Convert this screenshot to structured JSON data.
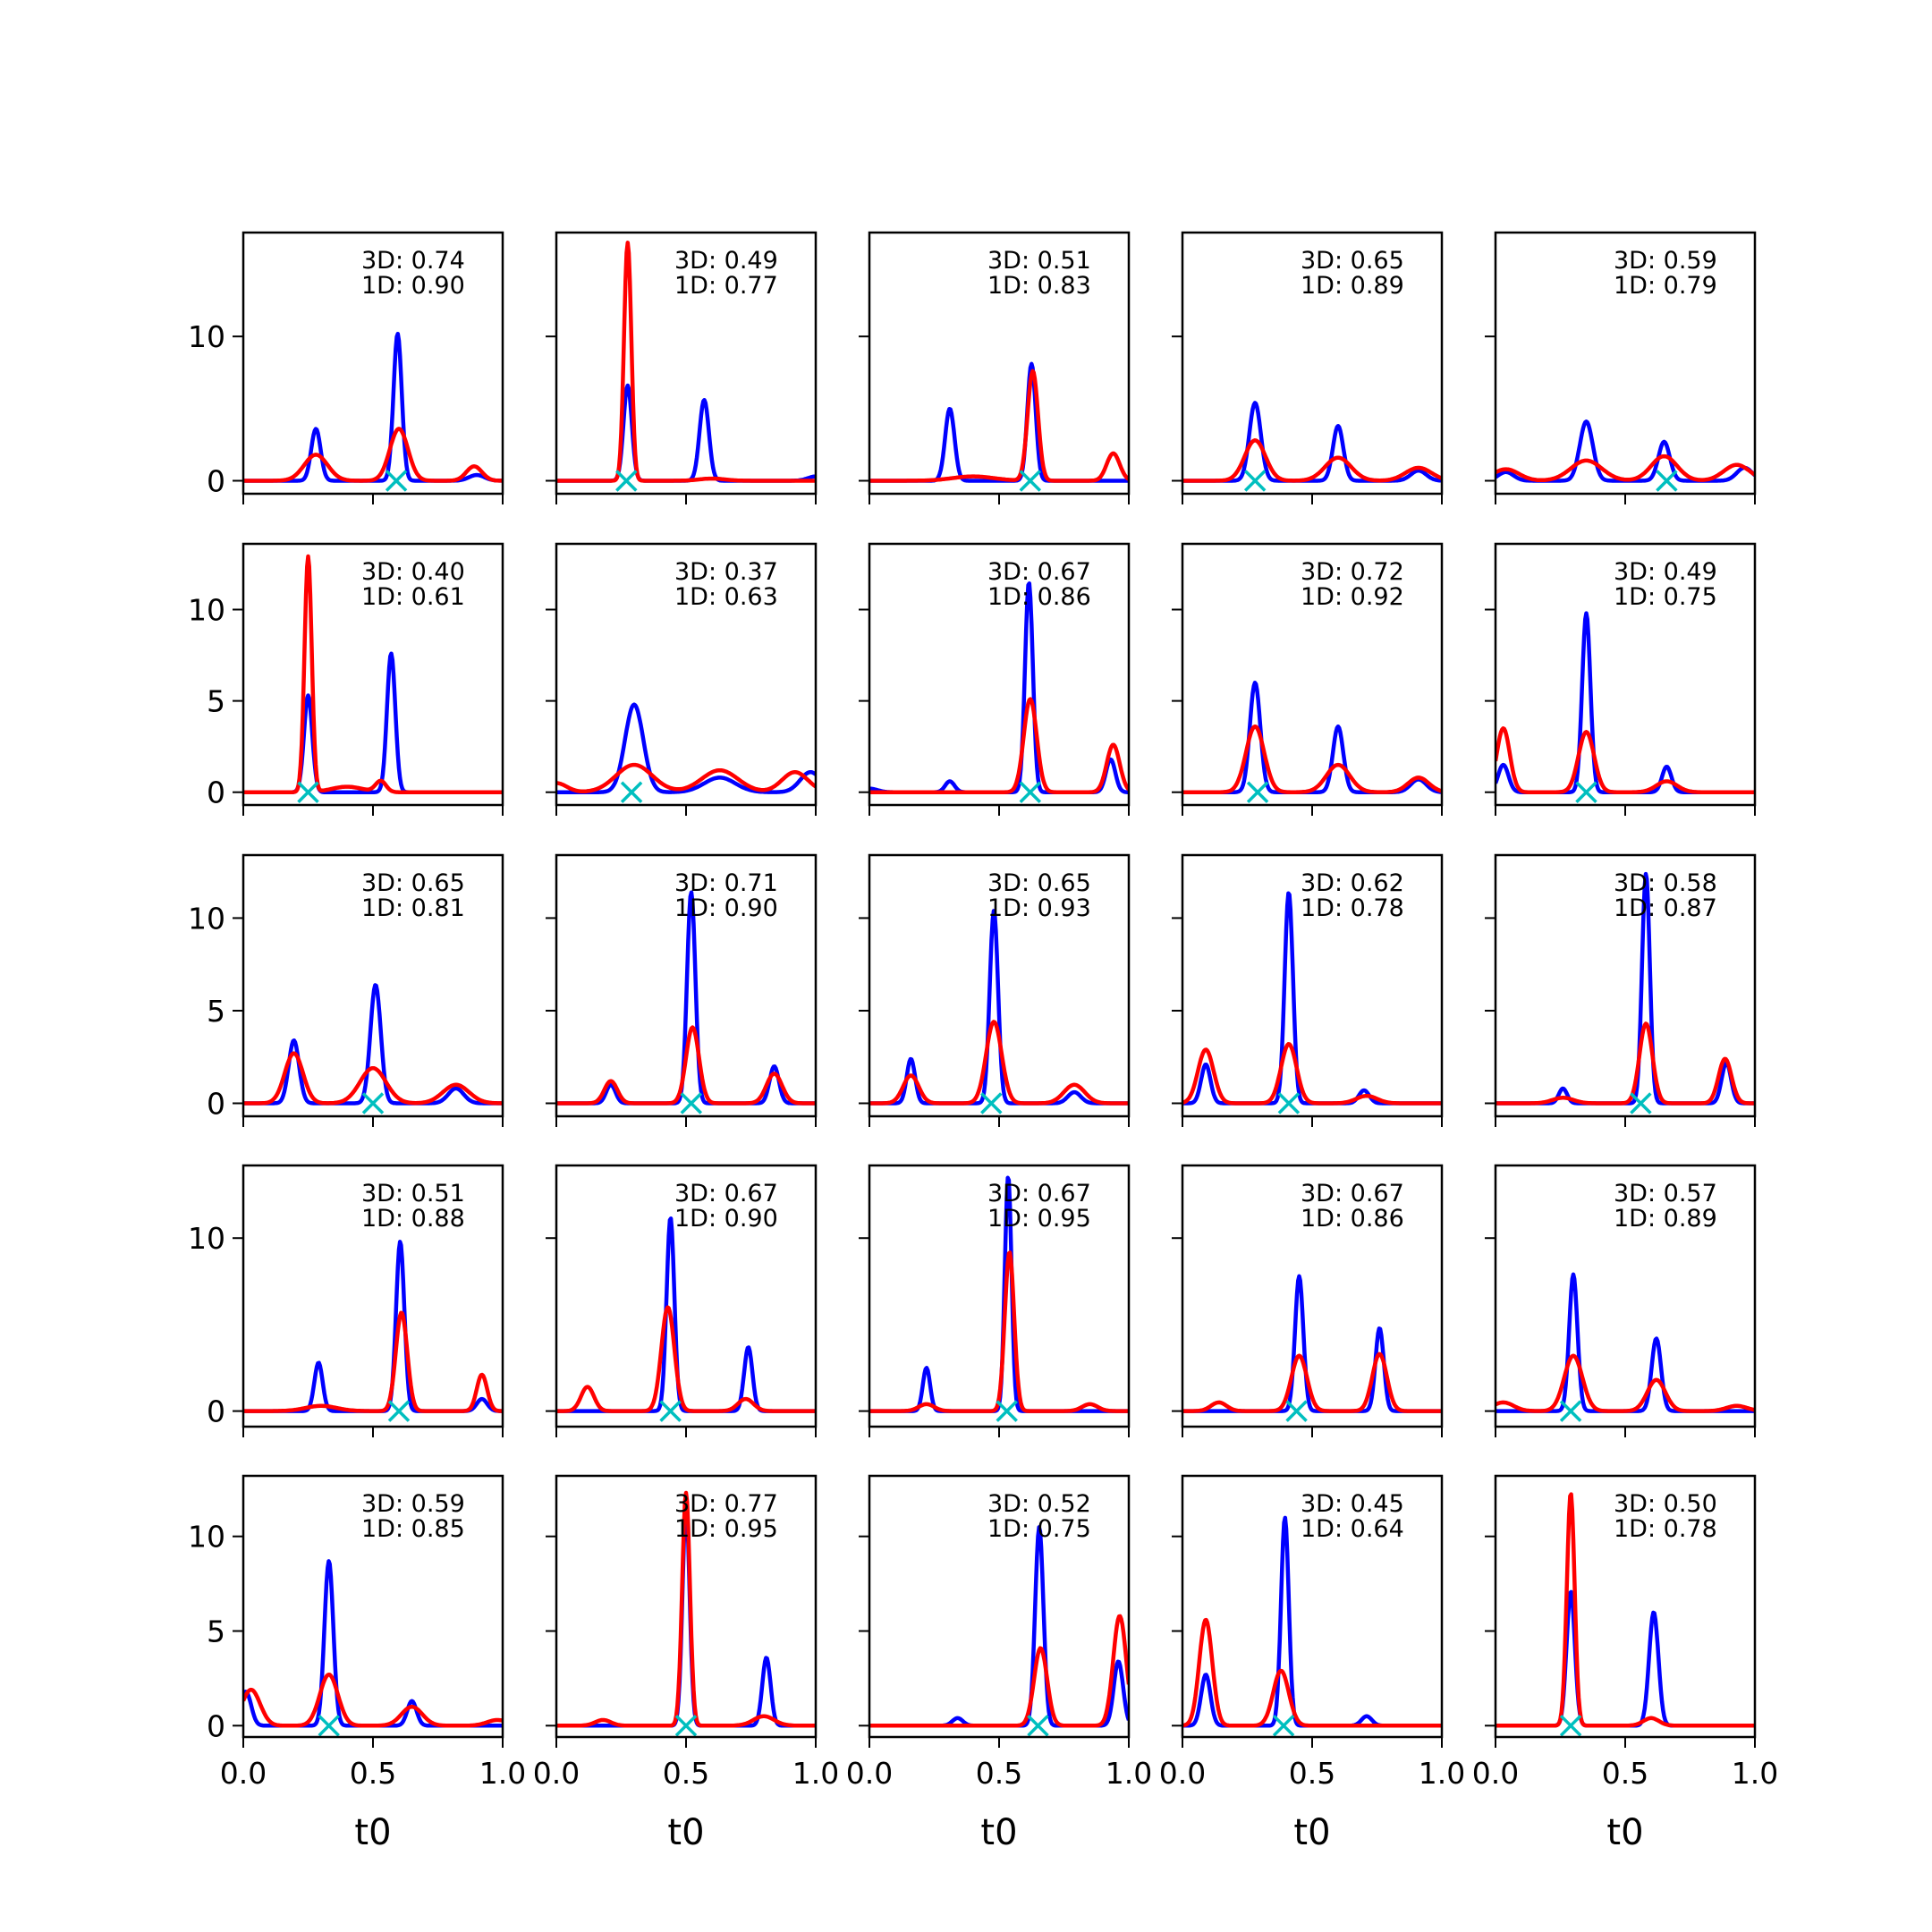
{
  "chart_data": {
    "type": "line",
    "layout": "small-multiples",
    "rows": 5,
    "cols": 5,
    "xlabel": "t0",
    "xlim": [
      0,
      1
    ],
    "x_ticks": [
      0,
      0.5,
      1
    ],
    "x_tick_labels": [
      "0.0",
      "0.5",
      "1.0"
    ],
    "series_colors": {
      "3D": "#0000ff",
      "1D": "#ff0000",
      "marker": "#00bfbf"
    },
    "row_axes": [
      {
        "ylim": [
          -0.9,
          17.2
        ],
        "y_ticks": [
          0,
          10
        ],
        "y_tick_labels": [
          "0",
          "10"
        ]
      },
      {
        "ylim": [
          -0.7,
          13.6
        ],
        "y_ticks": [
          0,
          5,
          10
        ],
        "y_tick_labels": [
          "0",
          "5",
          "10"
        ]
      },
      {
        "ylim": [
          -0.7,
          13.4
        ],
        "y_ticks": [
          0,
          5,
          10
        ],
        "y_tick_labels": [
          "0",
          "5",
          "10"
        ]
      },
      {
        "ylim": [
          -0.9,
          14.2
        ],
        "y_ticks": [
          0,
          10
        ],
        "y_tick_labels": [
          "0",
          "10"
        ]
      },
      {
        "ylim": [
          -0.6,
          13.2
        ],
        "y_ticks": [
          0,
          5,
          10
        ],
        "y_tick_labels": [
          "0",
          "5",
          "10"
        ]
      }
    ],
    "panels": [
      {
        "row": 0,
        "col": 0,
        "score_3d": "3D: 0.74",
        "score_1d": "1D: 0.90",
        "marker_x": 0.59,
        "blue": [
          [
            0.28,
            3.6,
            0.018
          ],
          [
            0.595,
            10.2,
            0.016
          ],
          [
            0.9,
            0.4,
            0.03
          ]
        ],
        "red": [
          [
            0.28,
            1.8,
            0.045
          ],
          [
            0.6,
            3.6,
            0.035
          ],
          [
            0.89,
            1.0,
            0.03
          ]
        ]
      },
      {
        "row": 0,
        "col": 1,
        "score_3d": "3D: 0.49",
        "score_1d": "1D: 0.77",
        "marker_x": 0.27,
        "blue": [
          [
            0.275,
            6.6,
            0.016
          ],
          [
            0.57,
            5.6,
            0.018
          ],
          [
            1.0,
            0.3,
            0.03
          ]
        ],
        "red": [
          [
            0.275,
            16.5,
            0.014
          ],
          [
            0.6,
            0.15,
            0.05
          ]
        ]
      },
      {
        "row": 0,
        "col": 2,
        "score_3d": "3D: 0.51",
        "score_1d": "1D: 0.83",
        "marker_x": 0.62,
        "blue": [
          [
            0.31,
            5.0,
            0.018
          ],
          [
            0.625,
            8.1,
            0.016
          ]
        ],
        "red": [
          [
            0.4,
            0.3,
            0.08
          ],
          [
            0.63,
            7.6,
            0.02
          ],
          [
            0.94,
            1.9,
            0.025
          ]
        ]
      },
      {
        "row": 0,
        "col": 3,
        "score_3d": "3D: 0.65",
        "score_1d": "1D: 0.89",
        "marker_x": 0.28,
        "blue": [
          [
            0.28,
            5.4,
            0.022
          ],
          [
            0.6,
            3.8,
            0.02
          ],
          [
            0.91,
            0.7,
            0.03
          ]
        ],
        "red": [
          [
            0.28,
            2.8,
            0.04
          ],
          [
            0.6,
            1.6,
            0.05
          ],
          [
            0.91,
            0.9,
            0.05
          ]
        ]
      },
      {
        "row": 0,
        "col": 4,
        "score_3d": "3D: 0.59",
        "score_1d": "1D: 0.79",
        "marker_x": 0.66,
        "blue": [
          [
            0.04,
            0.6,
            0.03
          ],
          [
            0.35,
            4.1,
            0.025
          ],
          [
            0.65,
            2.7,
            0.022
          ],
          [
            0.96,
            0.9,
            0.03
          ]
        ],
        "red": [
          [
            0.04,
            0.8,
            0.05
          ],
          [
            0.35,
            1.4,
            0.06
          ],
          [
            0.65,
            1.7,
            0.05
          ],
          [
            0.93,
            1.1,
            0.05
          ]
        ]
      },
      {
        "row": 1,
        "col": 0,
        "score_3d": "3D: 0.40",
        "score_1d": "1D: 0.61",
        "marker_x": 0.25,
        "blue": [
          [
            0.25,
            5.3,
            0.016
          ],
          [
            0.57,
            7.6,
            0.016
          ]
        ],
        "red": [
          [
            0.25,
            12.9,
            0.014
          ],
          [
            0.4,
            0.3,
            0.06
          ],
          [
            0.53,
            0.6,
            0.02
          ]
        ]
      },
      {
        "row": 1,
        "col": 1,
        "score_3d": "3D: 0.37",
        "score_1d": "1D: 0.63",
        "marker_x": 0.29,
        "blue": [
          [
            0.3,
            4.8,
            0.035
          ],
          [
            0.63,
            0.8,
            0.06
          ],
          [
            0.98,
            1.1,
            0.04
          ]
        ],
        "red": [
          [
            0.0,
            0.5,
            0.04
          ],
          [
            0.3,
            1.5,
            0.07
          ],
          [
            0.63,
            1.2,
            0.07
          ],
          [
            0.92,
            1.1,
            0.05
          ]
        ]
      },
      {
        "row": 1,
        "col": 2,
        "score_3d": "3D: 0.67",
        "score_1d": "1D: 0.86",
        "marker_x": 0.62,
        "blue": [
          [
            0.0,
            0.2,
            0.03
          ],
          [
            0.31,
            0.6,
            0.018
          ],
          [
            0.615,
            11.5,
            0.015
          ],
          [
            0.93,
            1.8,
            0.018
          ]
        ],
        "red": [
          [
            0.62,
            5.1,
            0.025
          ],
          [
            0.94,
            2.6,
            0.025
          ]
        ]
      },
      {
        "row": 1,
        "col": 3,
        "score_3d": "3D: 0.72",
        "score_1d": "1D: 0.92",
        "marker_x": 0.29,
        "blue": [
          [
            0.28,
            6.0,
            0.02
          ],
          [
            0.6,
            3.6,
            0.02
          ],
          [
            0.91,
            0.7,
            0.03
          ]
        ],
        "red": [
          [
            0.28,
            3.6,
            0.035
          ],
          [
            0.6,
            1.5,
            0.045
          ],
          [
            0.91,
            0.8,
            0.04
          ]
        ]
      },
      {
        "row": 1,
        "col": 4,
        "score_3d": "3D: 0.49",
        "score_1d": "1D: 0.75",
        "marker_x": 0.35,
        "blue": [
          [
            0.03,
            1.5,
            0.02
          ],
          [
            0.35,
            9.8,
            0.016
          ],
          [
            0.66,
            1.4,
            0.018
          ]
        ],
        "red": [
          [
            0.03,
            3.5,
            0.025
          ],
          [
            0.35,
            3.3,
            0.03
          ],
          [
            0.66,
            0.6,
            0.04
          ]
        ]
      },
      {
        "row": 2,
        "col": 0,
        "score_3d": "3D: 0.65",
        "score_1d": "1D: 0.81",
        "marker_x": 0.5,
        "blue": [
          [
            0.195,
            3.4,
            0.02
          ],
          [
            0.51,
            6.4,
            0.02
          ],
          [
            0.82,
            0.8,
            0.03
          ]
        ],
        "red": [
          [
            0.195,
            2.7,
            0.035
          ],
          [
            0.5,
            1.9,
            0.05
          ],
          [
            0.82,
            1.0,
            0.05
          ]
        ]
      },
      {
        "row": 2,
        "col": 1,
        "score_3d": "3D: 0.71",
        "score_1d": "1D: 0.90",
        "marker_x": 0.52,
        "blue": [
          [
            0.21,
            1.0,
            0.018
          ],
          [
            0.52,
            11.4,
            0.016
          ],
          [
            0.84,
            2.0,
            0.018
          ]
        ],
        "red": [
          [
            0.21,
            1.2,
            0.025
          ],
          [
            0.525,
            4.1,
            0.025
          ],
          [
            0.84,
            1.6,
            0.03
          ]
        ]
      },
      {
        "row": 2,
        "col": 2,
        "score_3d": "3D: 0.65",
        "score_1d": "1D: 0.93",
        "marker_x": 0.47,
        "blue": [
          [
            0.16,
            2.4,
            0.016
          ],
          [
            0.48,
            10.4,
            0.016
          ],
          [
            0.79,
            0.6,
            0.025
          ]
        ],
        "red": [
          [
            0.16,
            1.5,
            0.03
          ],
          [
            0.48,
            4.4,
            0.03
          ],
          [
            0.79,
            1.0,
            0.04
          ]
        ]
      },
      {
        "row": 2,
        "col": 3,
        "score_3d": "3D: 0.62",
        "score_1d": "1D: 0.78",
        "marker_x": 0.41,
        "blue": [
          [
            0.09,
            2.1,
            0.018
          ],
          [
            0.41,
            11.4,
            0.016
          ],
          [
            0.7,
            0.7,
            0.02
          ]
        ],
        "red": [
          [
            0.09,
            2.9,
            0.03
          ],
          [
            0.41,
            3.2,
            0.03
          ],
          [
            0.71,
            0.4,
            0.04
          ]
        ]
      },
      {
        "row": 2,
        "col": 4,
        "score_3d": "3D: 0.58",
        "score_1d": "1D: 0.87",
        "marker_x": 0.56,
        "blue": [
          [
            0.26,
            0.8,
            0.016
          ],
          [
            0.58,
            12.4,
            0.015
          ],
          [
            0.89,
            2.2,
            0.018
          ]
        ],
        "red": [
          [
            0.26,
            0.3,
            0.04
          ],
          [
            0.58,
            4.3,
            0.025
          ],
          [
            0.885,
            2.4,
            0.025
          ]
        ]
      },
      {
        "row": 3,
        "col": 0,
        "score_3d": "3D: 0.51",
        "score_1d": "1D: 0.88",
        "marker_x": 0.6,
        "blue": [
          [
            0.29,
            2.8,
            0.016
          ],
          [
            0.605,
            9.8,
            0.016
          ],
          [
            0.92,
            0.7,
            0.02
          ]
        ],
        "red": [
          [
            0.3,
            0.3,
            0.06
          ],
          [
            0.61,
            5.7,
            0.022
          ],
          [
            0.92,
            2.1,
            0.02
          ]
        ]
      },
      {
        "row": 3,
        "col": 1,
        "score_3d": "3D: 0.67",
        "score_1d": "1D: 0.90",
        "marker_x": 0.44,
        "blue": [
          [
            0.44,
            11.2,
            0.015
          ],
          [
            0.74,
            3.7,
            0.016
          ]
        ],
        "red": [
          [
            0.12,
            1.4,
            0.025
          ],
          [
            0.43,
            6.0,
            0.025
          ],
          [
            0.73,
            0.7,
            0.03
          ]
        ]
      },
      {
        "row": 3,
        "col": 2,
        "score_3d": "3D: 0.67",
        "score_1d": "1D: 0.95",
        "marker_x": 0.53,
        "blue": [
          [
            0.22,
            2.5,
            0.014
          ],
          [
            0.535,
            13.6,
            0.013
          ]
        ],
        "red": [
          [
            0.22,
            0.4,
            0.03
          ],
          [
            0.54,
            9.2,
            0.018
          ],
          [
            0.85,
            0.4,
            0.03
          ]
        ]
      },
      {
        "row": 3,
        "col": 3,
        "score_3d": "3D: 0.67",
        "score_1d": "1D: 0.86",
        "marker_x": 0.44,
        "blue": [
          [
            0.45,
            7.8,
            0.016
          ],
          [
            0.76,
            4.8,
            0.016
          ]
        ],
        "red": [
          [
            0.14,
            0.5,
            0.03
          ],
          [
            0.45,
            3.2,
            0.03
          ],
          [
            0.76,
            3.3,
            0.028
          ]
        ]
      },
      {
        "row": 3,
        "col": 4,
        "score_3d": "3D: 0.57",
        "score_1d": "1D: 0.89",
        "marker_x": 0.29,
        "blue": [
          [
            0.3,
            7.9,
            0.016
          ],
          [
            0.62,
            4.2,
            0.018
          ]
        ],
        "red": [
          [
            0.03,
            0.5,
            0.04
          ],
          [
            0.3,
            3.2,
            0.035
          ],
          [
            0.62,
            1.8,
            0.035
          ],
          [
            0.93,
            0.3,
            0.04
          ]
        ]
      },
      {
        "row": 4,
        "col": 0,
        "score_3d": "3D: 0.59",
        "score_1d": "1D: 0.85",
        "marker_x": 0.33,
        "blue": [
          [
            0.01,
            1.8,
            0.02
          ],
          [
            0.33,
            8.7,
            0.017
          ],
          [
            0.65,
            1.3,
            0.018
          ]
        ],
        "red": [
          [
            0.03,
            1.9,
            0.035
          ],
          [
            0.33,
            2.7,
            0.035
          ],
          [
            0.65,
            1.0,
            0.04
          ],
          [
            0.98,
            0.3,
            0.04
          ]
        ]
      },
      {
        "row": 4,
        "col": 1,
        "score_3d": "3D: 0.77",
        "score_1d": "1D: 0.95",
        "marker_x": 0.5,
        "blue": [
          [
            0.5,
            11.5,
            0.014
          ],
          [
            0.81,
            3.6,
            0.016
          ]
        ],
        "red": [
          [
            0.18,
            0.3,
            0.03
          ],
          [
            0.5,
            12.3,
            0.015
          ],
          [
            0.8,
            0.5,
            0.04
          ]
        ]
      },
      {
        "row": 4,
        "col": 2,
        "score_3d": "3D: 0.52",
        "score_1d": "1D: 0.75",
        "marker_x": 0.65,
        "blue": [
          [
            0.34,
            0.4,
            0.02
          ],
          [
            0.655,
            10.5,
            0.016
          ],
          [
            0.96,
            3.4,
            0.018
          ]
        ],
        "red": [
          [
            0.66,
            4.1,
            0.025
          ],
          [
            0.965,
            5.8,
            0.025
          ]
        ]
      },
      {
        "row": 4,
        "col": 3,
        "score_3d": "3D: 0.45",
        "score_1d": "1D: 0.64",
        "marker_x": 0.39,
        "blue": [
          [
            0.09,
            2.7,
            0.018
          ],
          [
            0.395,
            11.0,
            0.015
          ],
          [
            0.71,
            0.5,
            0.02
          ]
        ],
        "red": [
          [
            0.09,
            5.6,
            0.025
          ],
          [
            0.38,
            2.9,
            0.03
          ]
        ]
      },
      {
        "row": 4,
        "col": 4,
        "score_3d": "3D: 0.50",
        "score_1d": "1D: 0.78",
        "marker_x": 0.29,
        "blue": [
          [
            0.29,
            7.1,
            0.016
          ],
          [
            0.61,
            6.0,
            0.018
          ]
        ],
        "red": [
          [
            0.29,
            12.3,
            0.015
          ],
          [
            0.6,
            0.4,
            0.03
          ]
        ]
      }
    ]
  }
}
